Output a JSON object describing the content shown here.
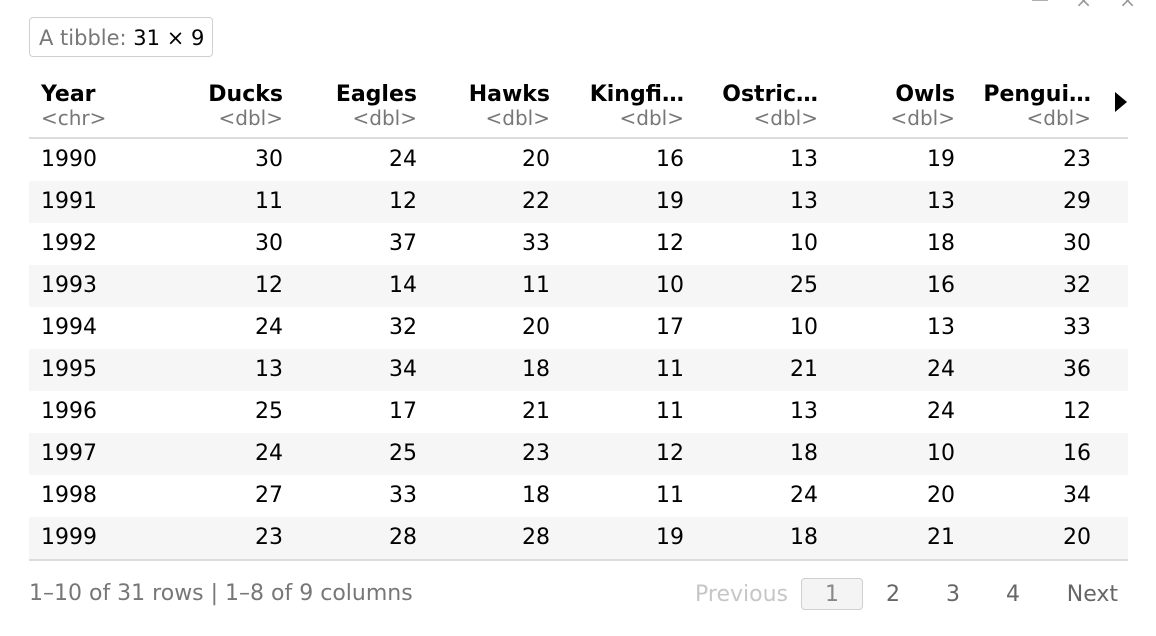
{
  "badge": {
    "label": "A tibble:",
    "dims": "31 × 9"
  },
  "columns": [
    {
      "name": "Year",
      "type": "<chr>"
    },
    {
      "name": "Ducks",
      "type": "<dbl>"
    },
    {
      "name": "Eagles",
      "type": "<dbl>"
    },
    {
      "name": "Hawks",
      "type": "<dbl>"
    },
    {
      "name": "Kingfi…",
      "type": "<dbl>"
    },
    {
      "name": "Ostric…",
      "type": "<dbl>"
    },
    {
      "name": "Owls",
      "type": "<dbl>"
    },
    {
      "name": "Pengui…",
      "type": "<dbl>"
    }
  ],
  "rows": [
    [
      "1990",
      "30",
      "24",
      "20",
      "16",
      "13",
      "19",
      "23"
    ],
    [
      "1991",
      "11",
      "12",
      "22",
      "19",
      "13",
      "13",
      "29"
    ],
    [
      "1992",
      "30",
      "37",
      "33",
      "12",
      "10",
      "18",
      "30"
    ],
    [
      "1993",
      "12",
      "14",
      "11",
      "10",
      "25",
      "16",
      "32"
    ],
    [
      "1994",
      "24",
      "32",
      "20",
      "17",
      "10",
      "13",
      "33"
    ],
    [
      "1995",
      "13",
      "34",
      "18",
      "11",
      "21",
      "24",
      "36"
    ],
    [
      "1996",
      "25",
      "17",
      "21",
      "11",
      "13",
      "24",
      "12"
    ],
    [
      "1997",
      "24",
      "25",
      "23",
      "12",
      "18",
      "10",
      "16"
    ],
    [
      "1998",
      "27",
      "33",
      "18",
      "11",
      "24",
      "20",
      "34"
    ],
    [
      "1999",
      "23",
      "28",
      "28",
      "19",
      "18",
      "21",
      "20"
    ]
  ],
  "footer": {
    "info": "1–10 of 31 rows | 1–8 of 9 columns"
  },
  "pager": {
    "previous": "Previous",
    "pages": [
      "1",
      "2",
      "3",
      "4"
    ],
    "next": "Next"
  }
}
